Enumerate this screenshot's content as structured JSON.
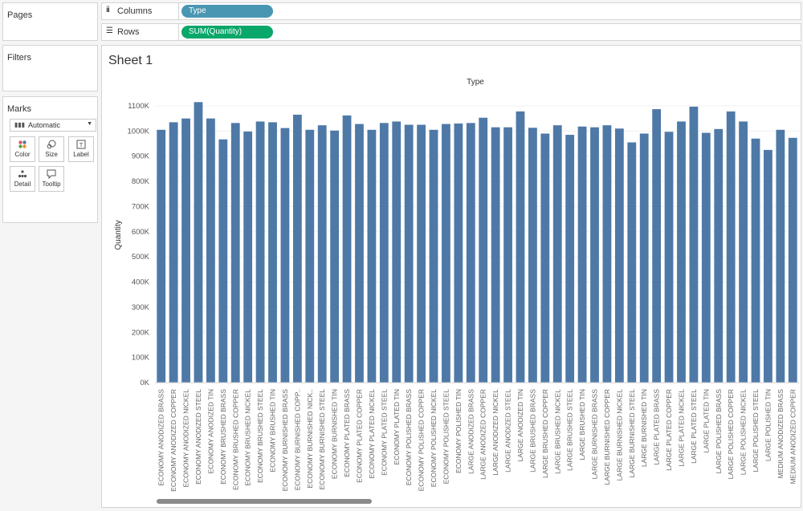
{
  "panels": {
    "pages": "Pages",
    "filters": "Filters",
    "marks": "Marks"
  },
  "marks": {
    "type": "Automatic",
    "buttons": [
      {
        "label": "Color",
        "icon": "color-icon"
      },
      {
        "label": "Size",
        "icon": "size-icon"
      },
      {
        "label": "Label",
        "icon": "label-icon"
      },
      {
        "label": "Detail",
        "icon": "detail-icon"
      },
      {
        "label": "Tooltip",
        "icon": "tooltip-icon"
      }
    ]
  },
  "shelves": {
    "columns": {
      "label": "Columns",
      "pill": "Type",
      "pill_color": "#4996b2"
    },
    "rows": {
      "label": "Rows",
      "pill": "SUM(Quantity)",
      "pill_color": "#09a76a"
    }
  },
  "sheet": {
    "title": "Sheet 1"
  },
  "chart_data": {
    "type": "bar",
    "title": "Type",
    "xlabel": "",
    "ylabel": "Quantity",
    "bar_color": "#4e79a7",
    "ylim": [
      0,
      1100000
    ],
    "yticks": [
      "0K",
      "100K",
      "200K",
      "300K",
      "400K",
      "500K",
      "600K",
      "700K",
      "800K",
      "900K",
      "1000K",
      "1100K"
    ],
    "categories": [
      "ECONOMY ANODIZED BRASS",
      "ECONOMY ANODIZED COPPER",
      "ECONOMY ANODIZED NICKEL",
      "ECONOMY ANODIZED STEEL",
      "ECONOMY ANODIZED TIN",
      "ECONOMY BRUSHED BRASS",
      "ECONOMY BRUSHED COPPER",
      "ECONOMY BRUSHED NICKEL",
      "ECONOMY BRUSHED STEEL",
      "ECONOMY BRUSHED TIN",
      "ECONOMY BURNISHED BRASS",
      "ECONOMY BURNISHED COPP..",
      "ECONOMY BURNISHED NICK..",
      "ECONOMY BURNISHED STEEL",
      "ECONOMY BURNISHED TIN",
      "ECONOMY PLATED BRASS",
      "ECONOMY PLATED COPPER",
      "ECONOMY PLATED NICKEL",
      "ECONOMY PLATED STEEL",
      "ECONOMY PLATED TIN",
      "ECONOMY POLISHED BRASS",
      "ECONOMY POLISHED COPPER",
      "ECONOMY POLISHED NICKEL",
      "ECONOMY POLISHED STEEL",
      "ECONOMY POLISHED TIN",
      "LARGE ANODIZED BRASS",
      "LARGE ANODIZED COPPER",
      "LARGE ANODIZED NICKEL",
      "LARGE ANODIZED STEEL",
      "LARGE ANODIZED TIN",
      "LARGE BRUSHED BRASS",
      "LARGE BRUSHED COPPER",
      "LARGE BRUSHED NICKEL",
      "LARGE BRUSHED STEEL",
      "LARGE BRUSHED TIN",
      "LARGE BURNISHED BRASS",
      "LARGE BURNISHED COPPER",
      "LARGE BURNISHED NICKEL",
      "LARGE BURNISHED STEEL",
      "LARGE BURNISHED TIN",
      "LARGE PLATED BRASS",
      "LARGE PLATED COPPER",
      "LARGE PLATED NICKEL",
      "LARGE PLATED STEEL",
      "LARGE PLATED TIN",
      "LARGE POLISHED BRASS",
      "LARGE POLISHED COPPER",
      "LARGE POLISHED NICKEL",
      "LARGE POLISHED STEEL",
      "LARGE POLISHED TIN",
      "MEDIUM ANODIZED BRASS",
      "MEDIUM ANODIZED COPPER"
    ],
    "values": [
      1005000,
      1035000,
      1050000,
      1115000,
      1050000,
      967000,
      1032000,
      998000,
      1038000,
      1035000,
      1012000,
      1065000,
      1005000,
      1023000,
      1002000,
      1062000,
      1028000,
      1005000,
      1032000,
      1038000,
      1025000,
      1025000,
      1005000,
      1028000,
      1030000,
      1032000,
      1053000,
      1015000,
      1015000,
      1078000,
      1013000,
      990000,
      1023000,
      985000,
      1018000,
      1015000,
      1023000,
      1010000,
      955000,
      990000,
      1087000,
      997000,
      1038000,
      1097000,
      993000,
      1008000,
      1078000,
      1038000,
      970000,
      925000,
      1005000,
      973000
    ]
  }
}
